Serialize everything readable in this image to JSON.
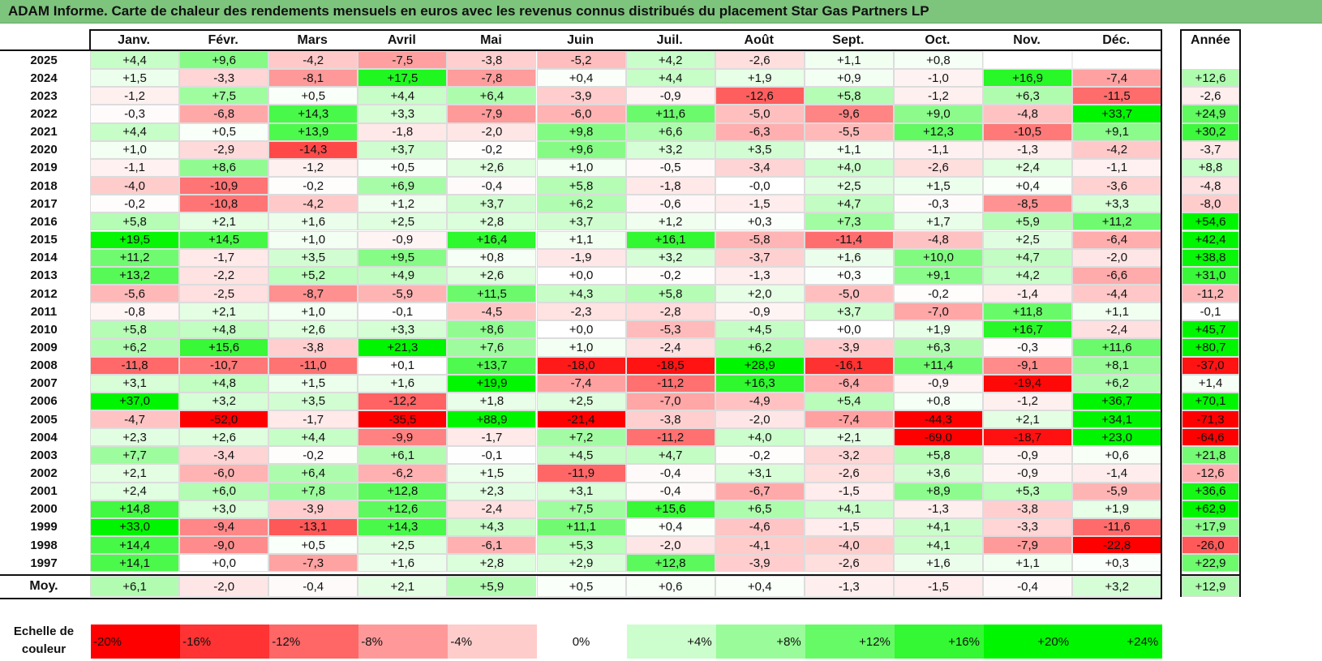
{
  "title": "ADAM Informe. Carte de chaleur des rendements mensuels en euros avec les revenus connus distribués du placement Star Gas Partners LP",
  "colors": {
    "title_bg": "#7dc47d",
    "positive_max": "#00ff00",
    "negative_max": "#ff0000",
    "neutral": "#ffffff"
  },
  "chart_data": {
    "type": "heatmap",
    "title": "ADAM Informe. Carte de chaleur des rendements mensuels en euros avec les revenus connus distribués du placement Star Gas Partners LP",
    "columns": [
      "Janv.",
      "Févr.",
      "Mars",
      "Avril",
      "Mai",
      "Juin",
      "Juil.",
      "Août",
      "Sept.",
      "Oct.",
      "Nov.",
      "Déc."
    ],
    "annual_header": "Année",
    "rows": [
      {
        "year": "2025",
        "values": [
          "+4,4",
          "+9,6",
          "-4,2",
          "-7,5",
          "-3,8",
          "-5,2",
          "+4,2",
          "-2,6",
          "+1,1",
          "+0,8",
          "",
          ""
        ],
        "annual": ""
      },
      {
        "year": "2024",
        "values": [
          "+1,5",
          "-3,3",
          "-8,1",
          "+17,5",
          "-7,8",
          "+0,4",
          "+4,4",
          "+1,9",
          "+0,9",
          "-1,0",
          "+16,9",
          "-7,4"
        ],
        "annual": "+12,6"
      },
      {
        "year": "2023",
        "values": [
          "-1,2",
          "+7,5",
          "+0,5",
          "+4,4",
          "+6,4",
          "-3,9",
          "-0,9",
          "-12,6",
          "+5,8",
          "-1,2",
          "+6,3",
          "-11,5"
        ],
        "annual": "-2,6"
      },
      {
        "year": "2022",
        "values": [
          "-0,3",
          "-6,8",
          "+14,3",
          "+3,3",
          "-7,9",
          "-6,0",
          "+11,6",
          "-5,0",
          "-9,6",
          "+9,0",
          "-4,8",
          "+33,7"
        ],
        "annual": "+24,9"
      },
      {
        "year": "2021",
        "values": [
          "+4,4",
          "+0,5",
          "+13,9",
          "-1,8",
          "-2,0",
          "+9,8",
          "+6,6",
          "-6,3",
          "-5,5",
          "+12,3",
          "-10,5",
          "+9,1"
        ],
        "annual": "+30,2"
      },
      {
        "year": "2020",
        "values": [
          "+1,0",
          "-2,9",
          "-14,3",
          "+3,7",
          "-0,2",
          "+9,6",
          "+3,2",
          "+3,5",
          "+1,1",
          "-1,1",
          "-1,3",
          "-4,2"
        ],
        "annual": "-3,7"
      },
      {
        "year": "2019",
        "values": [
          "-1,1",
          "+8,6",
          "-1,2",
          "+0,5",
          "+2,6",
          "+1,0",
          "-0,5",
          "-3,4",
          "+4,0",
          "-2,6",
          "+2,4",
          "-1,1"
        ],
        "annual": "+8,8"
      },
      {
        "year": "2018",
        "values": [
          "-4,0",
          "-10,9",
          "-0,2",
          "+6,9",
          "-0,4",
          "+5,8",
          "-1,8",
          "-0,0",
          "+2,5",
          "+1,5",
          "+0,4",
          "-3,6"
        ],
        "annual": "-4,8"
      },
      {
        "year": "2017",
        "values": [
          "-0,2",
          "-10,8",
          "-4,2",
          "+1,2",
          "+3,7",
          "+6,2",
          "-0,6",
          "-1,5",
          "+4,7",
          "-0,3",
          "-8,5",
          "+3,3"
        ],
        "annual": "-8,0"
      },
      {
        "year": "2016",
        "values": [
          "+5,8",
          "+2,1",
          "+1,6",
          "+2,5",
          "+2,8",
          "+3,7",
          "+1,2",
          "+0,3",
          "+7,3",
          "+1,7",
          "+5,9",
          "+11,2"
        ],
        "annual": "+54,6"
      },
      {
        "year": "2015",
        "values": [
          "+19,5",
          "+14,5",
          "+1,0",
          "-0,9",
          "+16,4",
          "+1,1",
          "+16,1",
          "-5,8",
          "-11,4",
          "-4,8",
          "+2,5",
          "-6,4"
        ],
        "annual": "+42,4"
      },
      {
        "year": "2014",
        "values": [
          "+11,2",
          "-1,7",
          "+3,5",
          "+9,5",
          "+0,8",
          "-1,9",
          "+3,2",
          "-3,7",
          "+1,6",
          "+10,0",
          "+4,7",
          "-2,0"
        ],
        "annual": "+38,8"
      },
      {
        "year": "2013",
        "values": [
          "+13,2",
          "-2,2",
          "+5,2",
          "+4,9",
          "+2,6",
          "+0,0",
          "-0,2",
          "-1,3",
          "+0,3",
          "+9,1",
          "+4,2",
          "-6,6"
        ],
        "annual": "+31,0"
      },
      {
        "year": "2012",
        "values": [
          "-5,6",
          "-2,5",
          "-8,7",
          "-5,9",
          "+11,5",
          "+4,3",
          "+5,8",
          "+2,0",
          "-5,0",
          "-0,2",
          "-1,4",
          "-4,4"
        ],
        "annual": "-11,2"
      },
      {
        "year": "2011",
        "values": [
          "-0,8",
          "+2,1",
          "+1,0",
          "-0,1",
          "-4,5",
          "-2,3",
          "-2,8",
          "-0,9",
          "+3,7",
          "-7,0",
          "+11,8",
          "+1,1"
        ],
        "annual": "-0,1"
      },
      {
        "year": "2010",
        "values": [
          "+5,8",
          "+4,8",
          "+2,6",
          "+3,3",
          "+8,6",
          "+0,0",
          "-5,3",
          "+4,5",
          "+0,0",
          "+1,9",
          "+16,7",
          "-2,4"
        ],
        "annual": "+45,7"
      },
      {
        "year": "2009",
        "values": [
          "+6,2",
          "+15,6",
          "-3,8",
          "+21,3",
          "+7,6",
          "+1,0",
          "-2,4",
          "+6,2",
          "-3,9",
          "+6,3",
          "-0,3",
          "+11,6"
        ],
        "annual": "+80,7"
      },
      {
        "year": "2008",
        "values": [
          "-11,8",
          "-10,7",
          "-11,0",
          "+0,1",
          "+13,7",
          "-18,0",
          "-18,5",
          "+28,9",
          "-16,1",
          "+11,4",
          "-9,1",
          "+8,1"
        ],
        "annual": "-37,0"
      },
      {
        "year": "2007",
        "values": [
          "+3,1",
          "+4,8",
          "+1,5",
          "+1,6",
          "+19,9",
          "-7,4",
          "-11,2",
          "+16,3",
          "-6,4",
          "-0,9",
          "-19,4",
          "+6,2"
        ],
        "annual": "+1,4"
      },
      {
        "year": "2006",
        "values": [
          "+37,0",
          "+3,2",
          "+3,5",
          "-12,2",
          "+1,8",
          "+2,5",
          "-7,0",
          "-4,9",
          "+5,4",
          "+0,8",
          "-1,2",
          "+36,7"
        ],
        "annual": "+70,1"
      },
      {
        "year": "2005",
        "values": [
          "-4,7",
          "-52,0",
          "-1,7",
          "-35,5",
          "+88,9",
          "-21,4",
          "-3,8",
          "-2,0",
          "-7,4",
          "-44,3",
          "+2,1",
          "+34,1"
        ],
        "annual": "-71,3"
      },
      {
        "year": "2004",
        "values": [
          "+2,3",
          "+2,6",
          "+4,4",
          "-9,9",
          "-1,7",
          "+7,2",
          "-11,2",
          "+4,0",
          "+2,1",
          "-69,0",
          "-18,7",
          "+23,0"
        ],
        "annual": "-64,6"
      },
      {
        "year": "2003",
        "values": [
          "+7,7",
          "-3,4",
          "-0,2",
          "+6,1",
          "-0,1",
          "+4,5",
          "+4,7",
          "-0,2",
          "-3,2",
          "+5,8",
          "-0,9",
          "+0,6"
        ],
        "annual": "+21,8"
      },
      {
        "year": "2002",
        "values": [
          "+2,1",
          "-6,0",
          "+6,4",
          "-6,2",
          "+1,5",
          "-11,9",
          "-0,4",
          "+3,1",
          "-2,6",
          "+3,6",
          "-0,9",
          "-1,4"
        ],
        "annual": "-12,6"
      },
      {
        "year": "2001",
        "values": [
          "+2,4",
          "+6,0",
          "+7,8",
          "+12,8",
          "+2,3",
          "+3,1",
          "-0,4",
          "-6,7",
          "-1,5",
          "+8,9",
          "+5,3",
          "-5,9"
        ],
        "annual": "+36,6"
      },
      {
        "year": "2000",
        "values": [
          "+14,8",
          "+3,0",
          "-3,9",
          "+12,6",
          "-2,4",
          "+7,5",
          "+15,6",
          "+6,5",
          "+4,1",
          "-1,3",
          "-3,8",
          "+1,9"
        ],
        "annual": "+62,9"
      },
      {
        "year": "1999",
        "values": [
          "+33,0",
          "-9,4",
          "-13,1",
          "+14,3",
          "+4,3",
          "+11,1",
          "+0,4",
          "-4,6",
          "-1,5",
          "+4,1",
          "-3,3",
          "-11,6"
        ],
        "annual": "+17,9"
      },
      {
        "year": "1998",
        "values": [
          "+14,4",
          "-9,0",
          "+0,5",
          "+2,5",
          "-6,1",
          "+5,3",
          "-2,0",
          "-4,1",
          "-4,0",
          "+4,1",
          "-7,9",
          "-22,8"
        ],
        "annual": "-26,0"
      },
      {
        "year": "1997",
        "values": [
          "+14,1",
          "+0,0",
          "-7,3",
          "+1,6",
          "+2,8",
          "+2,9",
          "+12,8",
          "-3,9",
          "-2,6",
          "+1,6",
          "+1,1",
          "+0,3"
        ],
        "annual": "+22,9"
      }
    ],
    "average_row": {
      "label": "Moy.",
      "values": [
        "+6,1",
        "-2,0",
        "-0,4",
        "+2,1",
        "+5,9",
        "+0,5",
        "+0,6",
        "+0,4",
        "-1,3",
        "-1,5",
        "-0,4",
        "+3,2"
      ],
      "annual": "+12,9"
    },
    "color_scale": {
      "label": "Echelle de couleur",
      "steps": [
        "-20%",
        "-16%",
        "-12%",
        "-8%",
        "-4%",
        "0%",
        "+4%",
        "+8%",
        "+12%",
        "+16%",
        "+20%",
        "+24%"
      ],
      "step_values": [
        -20,
        -16,
        -12,
        -8,
        -4,
        0,
        4,
        8,
        12,
        16,
        20,
        24
      ],
      "monthly_saturation": 20,
      "annual_saturation": 40
    }
  }
}
